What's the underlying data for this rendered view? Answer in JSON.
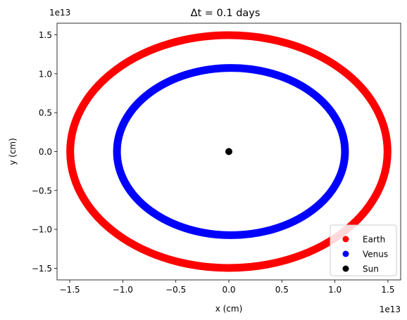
{
  "chart_data": {
    "type": "scatter",
    "title": "Δt = 0.1 days",
    "xlabel": "x (cm)",
    "ylabel": "y (cm)",
    "x_offset_label": "1e13",
    "y_offset_label": "1e13",
    "xlim": [
      -1.62,
      1.62
    ],
    "ylim": [
      -1.65,
      1.65
    ],
    "x_ticks": [
      -1.5,
      -1.0,
      -0.5,
      0.0,
      0.5,
      1.0,
      1.5
    ],
    "x_tick_labels": [
      "−1.5",
      "−1.0",
      "−0.5",
      "0.0",
      "0.5",
      "1.0",
      "1.5"
    ],
    "y_ticks": [
      -1.5,
      -1.0,
      -0.5,
      0.0,
      0.5,
      1.0,
      1.5
    ],
    "y_tick_labels": [
      "−1.5",
      "−1.0",
      "−0.5",
      "0.0",
      "0.5",
      "1.0",
      "1.5"
    ],
    "grid": false,
    "legend_position": "lower-right",
    "series": [
      {
        "name": "Earth",
        "color": "#ff0000",
        "shape": "circular-orbit",
        "center": [
          0.0,
          0.0
        ],
        "radius": 1.496
      },
      {
        "name": "Venus",
        "color": "#0000ff",
        "shape": "circular-orbit",
        "center": [
          0.02,
          0.0
        ],
        "radius": 1.075
      },
      {
        "name": "Sun",
        "color": "#000000",
        "shape": "point",
        "center": [
          0.0,
          0.0
        ]
      }
    ]
  }
}
